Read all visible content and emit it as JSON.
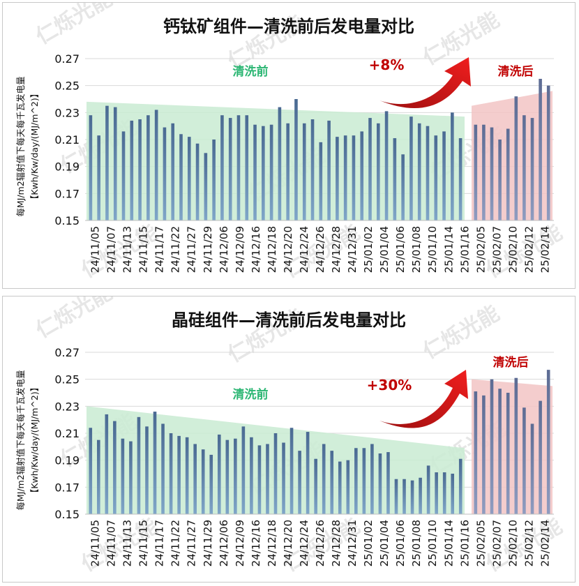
{
  "chart_data": [
    {
      "type": "bar",
      "title": "钙钛矿组件—清洗前后发电量对比",
      "ylabel_line1": "每MJ/m2辐射值下每天每千瓦发电量",
      "ylabel_line2": "【Kwh/Kw/day/(MJ/m^2)】",
      "ylim": [
        0.15,
        0.27
      ],
      "yticks": [
        "0.15",
        "0.17",
        "0.19",
        "0.21",
        "0.23",
        "0.25",
        "0.27"
      ],
      "tick_labels": [
        "24/11/05",
        "24/11/07",
        "24/11/13",
        "24/11/15",
        "24/11/17",
        "24/11/22",
        "24/11/27",
        "24/11/29",
        "24/12/06",
        "24/12/09",
        "24/12/16",
        "24/12/18",
        "24/12/20",
        "24/12/24",
        "24/12/26",
        "24/12/28",
        "24/12/31",
        "25/01/02",
        "25/01/04",
        "25/01/06",
        "25/01/08",
        "25/01/10",
        "25/01/14",
        "25/01/16",
        "25/02/05",
        "25/02/07",
        "25/02/10",
        "25/02/12",
        "25/02/14"
      ],
      "before_values": [
        0.228,
        0.213,
        0.235,
        0.234,
        0.216,
        0.224,
        0.225,
        0.228,
        0.232,
        0.219,
        0.222,
        0.214,
        0.212,
        0.207,
        0.2,
        0.21,
        0.228,
        0.226,
        0.228,
        0.228,
        0.221,
        0.22,
        0.221,
        0.234,
        0.222,
        0.24,
        0.222,
        0.225,
        0.208,
        0.224,
        0.212,
        0.213,
        0.213,
        0.216,
        0.226,
        0.222,
        0.231,
        0.211,
        0.199,
        0.227,
        0.222,
        0.22,
        0.213,
        0.216,
        0.23,
        0.211
      ],
      "after_values": [
        0.221,
        0.221,
        0.219,
        0.21,
        0.218,
        0.242,
        0.228,
        0.226,
        0.255,
        0.25
      ],
      "before_label": "清洗前",
      "after_label": "清洗后",
      "change_label": "+8%",
      "before_trend": [
        0.238,
        0.227
      ],
      "after_trend": [
        0.235,
        0.246
      ]
    },
    {
      "type": "bar",
      "title": "晶硅组件—清洗前后发电量对比",
      "ylabel_line1": "每MJ/m2辐射值下每天每千瓦发电量",
      "ylabel_line2": "【Kwh/Kw/day/(MJ/m^2)】",
      "ylim": [
        0.15,
        0.27
      ],
      "yticks": [
        "0.15",
        "0.17",
        "0.19",
        "0.21",
        "0.23",
        "0.25",
        "0.27"
      ],
      "tick_labels": [
        "24/11/05",
        "24/11/07",
        "24/11/13",
        "24/11/15",
        "24/11/17",
        "24/11/22",
        "24/11/27",
        "24/11/29",
        "24/12/06",
        "24/12/09",
        "24/12/16",
        "24/12/18",
        "24/12/20",
        "24/12/24",
        "24/12/26",
        "24/12/28",
        "24/12/31",
        "25/01/02",
        "25/01/04",
        "25/01/06",
        "25/01/08",
        "25/01/10",
        "25/01/14",
        "25/01/16",
        "25/02/05",
        "25/02/07",
        "25/02/10",
        "25/02/12",
        "25/02/14"
      ],
      "before_values": [
        0.214,
        0.205,
        0.224,
        0.219,
        0.206,
        0.204,
        0.222,
        0.215,
        0.226,
        0.217,
        0.21,
        0.208,
        0.207,
        0.202,
        0.198,
        0.194,
        0.209,
        0.205,
        0.206,
        0.215,
        0.207,
        0.201,
        0.202,
        0.21,
        0.203,
        0.214,
        0.197,
        0.211,
        0.191,
        0.202,
        0.197,
        0.189,
        0.19,
        0.199,
        0.199,
        0.202,
        0.195,
        0.196,
        0.176,
        0.176,
        0.175,
        0.177,
        0.186,
        0.181,
        0.181,
        0.18,
        0.191
      ],
      "after_values": [
        0.241,
        0.238,
        0.25,
        0.243,
        0.24,
        0.251,
        0.229,
        0.217,
        0.234,
        0.257
      ],
      "before_label": "清洗前",
      "after_label": "清洗后",
      "change_label": "+30%",
      "before_trend": [
        0.23,
        0.199
      ],
      "after_trend": [
        0.25,
        0.245
      ]
    }
  ]
}
